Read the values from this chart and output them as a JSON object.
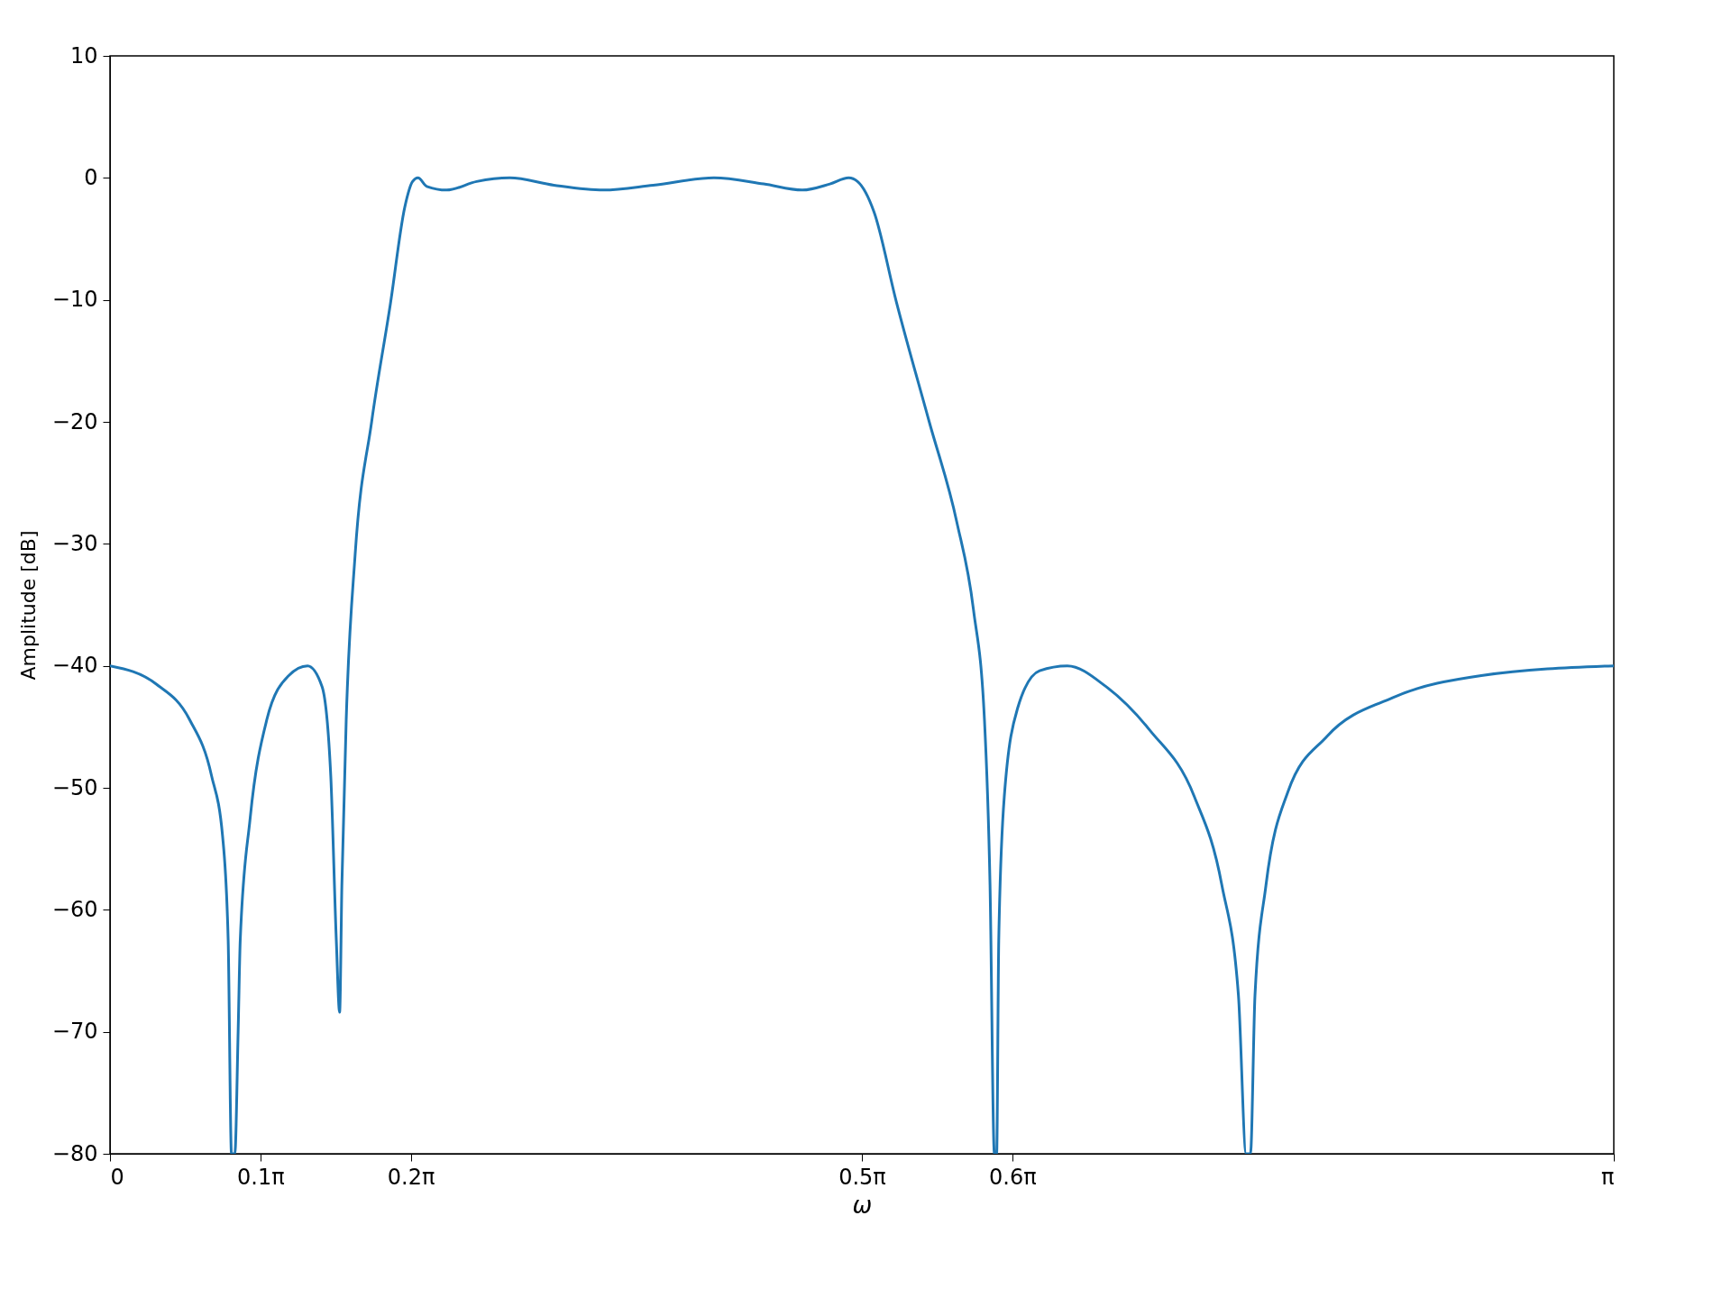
{
  "chart_data": {
    "type": "line",
    "xlabel": "ω",
    "ylabel": "Amplitude [dB]",
    "xlim": [
      0,
      3.14159
    ],
    "xticks": [
      {
        "value": 0,
        "label": "0"
      },
      {
        "value": 0.31416,
        "label": "0.1π"
      },
      {
        "value": 0.62832,
        "label": "0.2π"
      },
      {
        "value": 1.5708,
        "label": "0.5π"
      },
      {
        "value": 1.88496,
        "label": "0.6π"
      },
      {
        "value": 3.14159,
        "label": "π"
      }
    ],
    "ylim": [
      -80,
      10
    ],
    "yticks": [
      -80,
      -70,
      -60,
      -50,
      -40,
      -30,
      -20,
      -10,
      0,
      10
    ],
    "grid": false,
    "series": [
      {
        "color": "#1f77b4",
        "x": [
          0,
          0.0968,
          0.1662,
          0.2121,
          0.2353,
          0.2469,
          0.2538,
          0.2608,
          0.2677,
          0.2721,
          0.2928,
          0.3277,
          0.3735,
          0.4128,
          0.443,
          0.4612,
          0.4728,
          0.4797,
          0.4844,
          0.4935,
          0.5121,
          0.5466,
          0.5859,
          0.6158,
          0.6321,
          0.6434,
          0.6619,
          0.7034,
          0.7659,
          0.835,
          0.9274,
          1.0311,
          1.1347,
          1.2617,
          1.3656,
          1.4464,
          1.5039,
          1.5432,
          1.5617,
          1.5962,
          1.6424,
          1.7115,
          1.769,
          1.8039,
          1.8268,
          1.8385,
          1.8476,
          1.8523,
          1.8567,
          1.8683,
          1.8959,
          1.9421,
          2,
          2.0807,
          2.1727,
          2.2651,
          2.3229,
          2.3574,
          2.3735,
          2.3826,
          2.392,
          2.4149,
          2.4611,
          2.5419,
          2.6804,
          2.8648,
          3.14159
        ],
        "values": [
          -40,
          -41.5,
          -44.4,
          -49,
          -54,
          -62.5,
          -80,
          -80,
          -70,
          -62.5,
          -52.5,
          -44.4,
          -40.8,
          -40,
          -41.7,
          -49,
          -62.5,
          -68.4,
          -58,
          -44.4,
          -30.9,
          -20,
          -10.3,
          -2.4,
          -0.3,
          0,
          -0.7,
          -1,
          -0.3,
          0,
          -0.6,
          -1,
          -0.6,
          0,
          -0.5,
          -1,
          -0.5,
          0,
          -0.3,
          -2.8,
          -10.1,
          -20,
          -28.2,
          -35.4,
          -44.4,
          -58,
          -80,
          -80,
          -62.5,
          -50.7,
          -43.5,
          -40.4,
          -40,
          -41.7,
          -45.3,
          -50.7,
          -58,
          -67,
          -80,
          -80,
          -67,
          -58,
          -50.3,
          -45.8,
          -42.6,
          -40.8,
          -40
        ]
      }
    ]
  }
}
